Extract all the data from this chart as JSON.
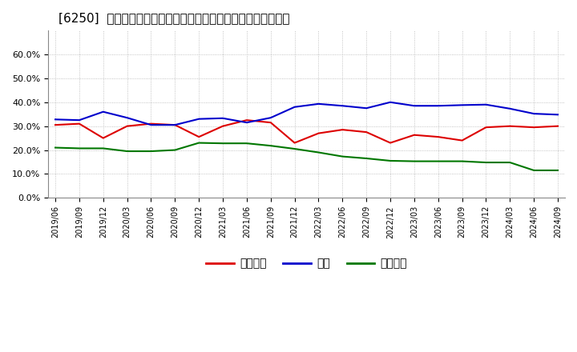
{
  "title": "[6250]  売上債権、在庫、買入債務の総資産に対する比率の推移",
  "x_labels": [
    "2019/06",
    "2019/09",
    "2019/12",
    "2020/03",
    "2020/06",
    "2020/09",
    "2020/12",
    "2021/03",
    "2021/06",
    "2021/09",
    "2021/12",
    "2022/03",
    "2022/06",
    "2022/09",
    "2022/12",
    "2023/03",
    "2023/06",
    "2023/09",
    "2023/12",
    "2024/03",
    "2024/06",
    "2024/09"
  ],
  "series": {
    "売上債権": {
      "color": "#dd0000",
      "values": [
        0.305,
        0.31,
        0.25,
        0.3,
        0.31,
        0.305,
        0.255,
        0.3,
        0.325,
        0.315,
        0.23,
        0.27,
        0.285,
        0.275,
        0.23,
        0.263,
        0.255,
        0.24,
        0.295,
        0.3,
        0.295,
        0.3
      ]
    },
    "在庫": {
      "color": "#0000cc",
      "values": [
        0.328,
        0.325,
        0.36,
        0.335,
        0.305,
        0.305,
        0.33,
        0.333,
        0.315,
        0.335,
        0.38,
        0.393,
        0.385,
        0.375,
        0.4,
        0.385,
        0.385,
        0.388,
        0.39,
        0.373,
        0.352,
        0.348
      ]
    },
    "買入債務": {
      "color": "#007700",
      "values": [
        0.21,
        0.207,
        0.207,
        0.195,
        0.195,
        0.2,
        0.23,
        0.228,
        0.228,
        0.218,
        0.205,
        0.19,
        0.173,
        0.165,
        0.155,
        0.153,
        0.153,
        0.153,
        0.148,
        0.148,
        0.115,
        0.115
      ]
    }
  },
  "ylim": [
    0.0,
    0.7
  ],
  "yticks": [
    0.0,
    0.1,
    0.2,
    0.3,
    0.4,
    0.5,
    0.6
  ],
  "background_color": "#ffffff",
  "plot_bg_color": "#ffffff",
  "grid_color": "#aaaaaa",
  "title_fontsize": 11,
  "legend_labels": [
    "売上債権",
    "在庫",
    "買入債務"
  ],
  "legend_colors": [
    "#dd0000",
    "#0000cc",
    "#007700"
  ]
}
